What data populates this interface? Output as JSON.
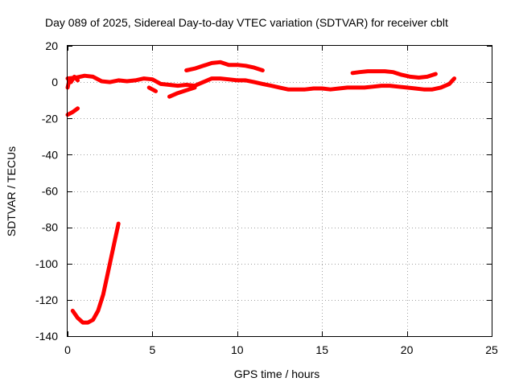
{
  "chart_data": {
    "type": "line",
    "title": "Day 089 of 2025, Sidereal Day-to-day VTEC variation (SDTVAR) for receiver cblt",
    "xlabel": "GPS time / hours",
    "ylabel": "SDTVAR / TECUs",
    "xlim": [
      0,
      25
    ],
    "ylim": [
      -140,
      20
    ],
    "xticks": [
      0,
      5,
      10,
      15,
      20,
      25
    ],
    "yticks": [
      20,
      0,
      -20,
      -40,
      -60,
      -80,
      -100,
      -120,
      -140
    ],
    "grid": true,
    "series_color": "#ff0000",
    "series": [
      {
        "name": "seg-early-negative",
        "points": [
          [
            0.0,
            -18
          ],
          [
            0.3,
            -16.5
          ],
          [
            0.6,
            -14.5
          ]
        ]
      },
      {
        "name": "seg-dip",
        "points": [
          [
            0.3,
            -126
          ],
          [
            0.6,
            -130
          ],
          [
            0.9,
            -132.5
          ],
          [
            1.2,
            -132.5
          ],
          [
            1.5,
            -131
          ],
          [
            1.8,
            -126
          ],
          [
            2.1,
            -117
          ],
          [
            2.4,
            -104
          ],
          [
            2.7,
            -91
          ],
          [
            3.0,
            -78
          ]
        ]
      },
      {
        "name": "seg-main-low",
        "points": [
          [
            0.0,
            2
          ],
          [
            0.5,
            2.5
          ],
          [
            1.0,
            3.5
          ],
          [
            1.5,
            3
          ],
          [
            2.0,
            0.5
          ],
          [
            2.5,
            0
          ],
          [
            3.0,
            1
          ],
          [
            3.5,
            0.5
          ],
          [
            4.0,
            1
          ],
          [
            4.5,
            2
          ],
          [
            5.0,
            1.5
          ],
          [
            5.5,
            -1
          ],
          [
            6.0,
            -1.5
          ],
          [
            6.5,
            -2
          ],
          [
            7.0,
            -1.5
          ],
          [
            7.5,
            -2
          ],
          [
            8.0,
            0
          ],
          [
            8.5,
            2
          ],
          [
            9.0,
            2
          ],
          [
            9.5,
            1.5
          ],
          [
            10.0,
            1
          ],
          [
            10.5,
            1
          ],
          [
            11.0,
            0
          ],
          [
            11.5,
            -1
          ],
          [
            12.0,
            -2
          ],
          [
            12.5,
            -3
          ],
          [
            13.0,
            -4
          ],
          [
            13.5,
            -4
          ],
          [
            14.0,
            -4
          ],
          [
            14.5,
            -3.5
          ],
          [
            15.0,
            -3.5
          ],
          [
            15.5,
            -4
          ],
          [
            16.0,
            -3.5
          ],
          [
            16.5,
            -3
          ],
          [
            17.0,
            -3
          ],
          [
            17.5,
            -3
          ],
          [
            18.0,
            -2.5
          ],
          [
            18.5,
            -2
          ],
          [
            19.0,
            -2
          ],
          [
            19.5,
            -2.5
          ],
          [
            20.0,
            -3
          ],
          [
            20.5,
            -3.5
          ],
          [
            21.0,
            -4
          ],
          [
            21.5,
            -4
          ],
          [
            22.0,
            -3
          ],
          [
            22.5,
            -1
          ],
          [
            22.8,
            2
          ]
        ]
      },
      {
        "name": "seg-noise-start",
        "points": [
          [
            0.0,
            -3
          ],
          [
            0.1,
            1
          ],
          [
            0.2,
            0
          ],
          [
            0.4,
            3
          ],
          [
            0.6,
            1
          ]
        ]
      },
      {
        "name": "seg-dip-6h",
        "points": [
          [
            6.0,
            -8
          ],
          [
            6.5,
            -6
          ],
          [
            7.0,
            -4.5
          ],
          [
            7.5,
            -3
          ]
        ]
      },
      {
        "name": "seg-dip-5h",
        "points": [
          [
            4.8,
            -3
          ],
          [
            5.2,
            -5
          ]
        ]
      },
      {
        "name": "seg-upper-9h",
        "points": [
          [
            7.0,
            6.5
          ],
          [
            7.5,
            7.5
          ],
          [
            8.0,
            9
          ],
          [
            8.5,
            10.5
          ],
          [
            9.0,
            11
          ],
          [
            9.5,
            9.5
          ],
          [
            10.0,
            9.5
          ],
          [
            10.5,
            9
          ],
          [
            11.0,
            8
          ],
          [
            11.5,
            6.5
          ]
        ]
      },
      {
        "name": "seg-upper-18h",
        "points": [
          [
            16.8,
            5
          ],
          [
            17.2,
            5.5
          ],
          [
            17.7,
            6
          ],
          [
            18.2,
            6
          ],
          [
            18.7,
            6
          ],
          [
            19.2,
            5.5
          ],
          [
            19.7,
            4
          ],
          [
            20.2,
            3
          ],
          [
            20.7,
            2.5
          ],
          [
            21.2,
            3
          ],
          [
            21.7,
            4.5
          ]
        ]
      }
    ]
  }
}
